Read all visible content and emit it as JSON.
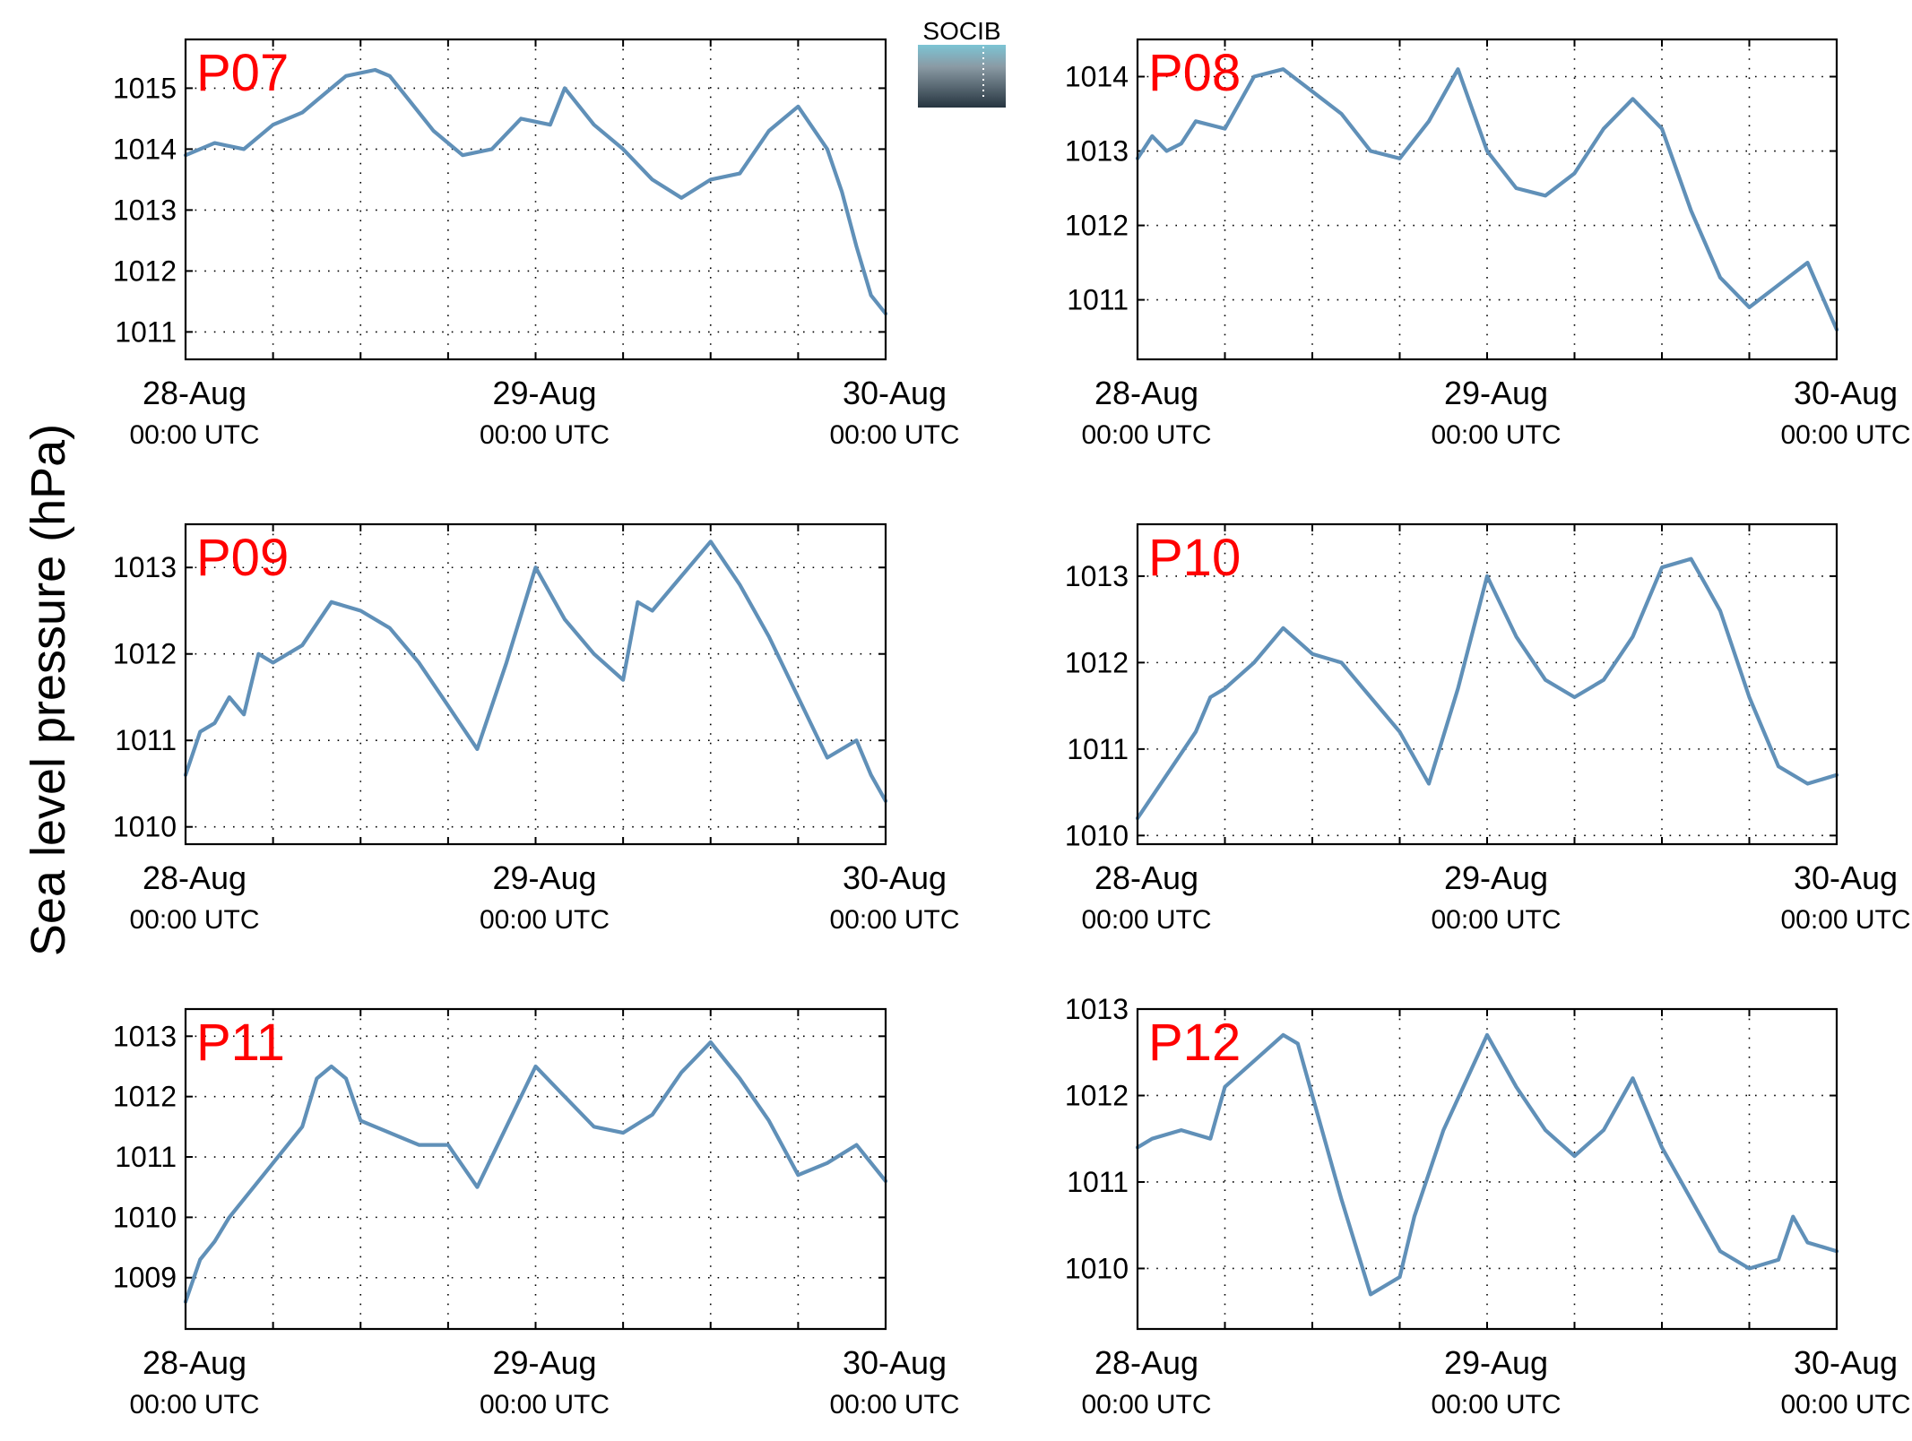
{
  "figure": {
    "ylabel": "Sea level pressure (hPa)",
    "logo_text": "SOCIB"
  },
  "colors": {
    "line": "#6090b8",
    "station_label": "#ff0000",
    "axes": "#000000",
    "grid": "#000000",
    "logo_text": "#5fb6cc",
    "logo_top": "#7cc4d4",
    "logo_bottom": "#263540"
  },
  "chart_data": [
    {
      "type": "line",
      "title": "P07",
      "x_tick_labels": [
        [
          "28-Aug",
          "00:00 UTC"
        ],
        [
          "29-Aug",
          "00:00 UTC"
        ],
        [
          "30-Aug",
          "00:00 UTC"
        ]
      ],
      "xlim": [
        "2024-08-28T00:00",
        "2024-08-30T00:00"
      ],
      "ylim": [
        1010.55,
        1015.8
      ],
      "yticks": [
        1011,
        1012,
        1013,
        1014,
        1015
      ],
      "grid": true,
      "series": [
        {
          "x": [
            "2024-08-28T00:00",
            "2024-08-28T02:00",
            "2024-08-28T04:00",
            "2024-08-28T06:00",
            "2024-08-28T08:00",
            "2024-08-28T09:00",
            "2024-08-28T11:00",
            "2024-08-28T13:00",
            "2024-08-28T14:00",
            "2024-08-28T15:00",
            "2024-08-28T17:00",
            "2024-08-28T19:00",
            "2024-08-28T21:00",
            "2024-08-28T23:00",
            "2024-08-29T01:00",
            "2024-08-29T02:00",
            "2024-08-29T04:00",
            "2024-08-29T06:00",
            "2024-08-29T08:00",
            "2024-08-29T10:00",
            "2024-08-29T12:00",
            "2024-08-29T14:00",
            "2024-08-29T16:00",
            "2024-08-29T18:00",
            "2024-08-29T20:00",
            "2024-08-29T21:00",
            "2024-08-29T22:00",
            "2024-08-29T23:00",
            "2024-08-30T00:00"
          ],
          "y": [
            1013.9,
            1014.1,
            1014.0,
            1014.4,
            1014.6,
            1014.8,
            1015.2,
            1015.3,
            1015.2,
            1014.9,
            1014.3,
            1013.9,
            1014.0,
            1014.5,
            1014.4,
            1015.0,
            1014.4,
            1014.0,
            1013.5,
            1013.2,
            1013.5,
            1013.6,
            1014.3,
            1014.7,
            1014.0,
            1013.3,
            1012.4,
            1011.6,
            1011.3
          ]
        }
      ]
    },
    {
      "type": "line",
      "title": "P08",
      "x_tick_labels": [
        [
          "28-Aug",
          "00:00 UTC"
        ],
        [
          "29-Aug",
          "00:00 UTC"
        ],
        [
          "30-Aug",
          "00:00 UTC"
        ]
      ],
      "xlim": [
        "2024-08-28T00:00",
        "2024-08-30T00:00"
      ],
      "ylim": [
        1010.2,
        1014.5
      ],
      "yticks": [
        1011,
        1012,
        1013,
        1014
      ],
      "grid": true,
      "series": [
        {
          "x": [
            "2024-08-28T00:00",
            "2024-08-28T01:00",
            "2024-08-28T02:00",
            "2024-08-28T03:00",
            "2024-08-28T04:00",
            "2024-08-28T06:00",
            "2024-08-28T08:00",
            "2024-08-28T10:00",
            "2024-08-28T12:00",
            "2024-08-28T14:00",
            "2024-08-28T16:00",
            "2024-08-28T18:00",
            "2024-08-28T20:00",
            "2024-08-28T22:00",
            "2024-08-29T00:00",
            "2024-08-29T02:00",
            "2024-08-29T04:00",
            "2024-08-29T06:00",
            "2024-08-29T08:00",
            "2024-08-29T10:00",
            "2024-08-29T12:00",
            "2024-08-29T14:00",
            "2024-08-29T16:00",
            "2024-08-29T18:00",
            "2024-08-29T20:00",
            "2024-08-29T22:00",
            "2024-08-30T00:00"
          ],
          "y": [
            1012.9,
            1013.2,
            1013.0,
            1013.1,
            1013.4,
            1013.3,
            1014.0,
            1014.1,
            1013.8,
            1013.5,
            1013.0,
            1012.9,
            1013.4,
            1014.1,
            1013.0,
            1012.5,
            1012.4,
            1012.7,
            1013.3,
            1013.7,
            1013.3,
            1012.2,
            1011.3,
            1010.9,
            1011.2,
            1011.5,
            1010.6
          ]
        }
      ]
    },
    {
      "type": "line",
      "title": "P09",
      "x_tick_labels": [
        [
          "28-Aug",
          "00:00 UTC"
        ],
        [
          "29-Aug",
          "00:00 UTC"
        ],
        [
          "30-Aug",
          "00:00 UTC"
        ]
      ],
      "xlim": [
        "2024-08-28T00:00",
        "2024-08-30T00:00"
      ],
      "ylim": [
        1009.8,
        1013.5
      ],
      "yticks": [
        1010,
        1011,
        1012,
        1013
      ],
      "grid": true,
      "series": [
        {
          "x": [
            "2024-08-28T00:00",
            "2024-08-28T01:00",
            "2024-08-28T02:00",
            "2024-08-28T03:00",
            "2024-08-28T04:00",
            "2024-08-28T05:00",
            "2024-08-28T06:00",
            "2024-08-28T08:00",
            "2024-08-28T10:00",
            "2024-08-28T12:00",
            "2024-08-28T14:00",
            "2024-08-28T16:00",
            "2024-08-28T18:00",
            "2024-08-28T20:00",
            "2024-08-28T22:00",
            "2024-08-29T00:00",
            "2024-08-29T02:00",
            "2024-08-29T04:00",
            "2024-08-29T06:00",
            "2024-08-29T07:00",
            "2024-08-29T08:00",
            "2024-08-29T10:00",
            "2024-08-29T12:00",
            "2024-08-29T14:00",
            "2024-08-29T16:00",
            "2024-08-29T18:00",
            "2024-08-29T20:00",
            "2024-08-29T22:00",
            "2024-08-29T23:00",
            "2024-08-30T00:00"
          ],
          "y": [
            1010.6,
            1011.1,
            1011.2,
            1011.5,
            1011.3,
            1012.0,
            1011.9,
            1012.1,
            1012.6,
            1012.5,
            1012.3,
            1011.9,
            1011.4,
            1010.9,
            1011.9,
            1013.0,
            1012.4,
            1012.0,
            1011.7,
            1012.6,
            1012.5,
            1012.9,
            1013.3,
            1012.8,
            1012.2,
            1011.5,
            1010.8,
            1011.0,
            1010.6,
            1010.3
          ]
        }
      ]
    },
    {
      "type": "line",
      "title": "P10",
      "x_tick_labels": [
        [
          "28-Aug",
          "00:00 UTC"
        ],
        [
          "29-Aug",
          "00:00 UTC"
        ],
        [
          "30-Aug",
          "00:00 UTC"
        ]
      ],
      "xlim": [
        "2024-08-28T00:00",
        "2024-08-30T00:00"
      ],
      "ylim": [
        1009.9,
        1013.6
      ],
      "yticks": [
        1010,
        1011,
        1012,
        1013
      ],
      "grid": true,
      "series": [
        {
          "x": [
            "2024-08-28T00:00",
            "2024-08-28T02:00",
            "2024-08-28T04:00",
            "2024-08-28T05:00",
            "2024-08-28T06:00",
            "2024-08-28T08:00",
            "2024-08-28T10:00",
            "2024-08-28T12:00",
            "2024-08-28T14:00",
            "2024-08-28T16:00",
            "2024-08-28T18:00",
            "2024-08-28T20:00",
            "2024-08-28T22:00",
            "2024-08-29T00:00",
            "2024-08-29T02:00",
            "2024-08-29T04:00",
            "2024-08-29T06:00",
            "2024-08-29T08:00",
            "2024-08-29T10:00",
            "2024-08-29T12:00",
            "2024-08-29T14:00",
            "2024-08-29T15:00",
            "2024-08-29T16:00",
            "2024-08-29T18:00",
            "2024-08-29T20:00",
            "2024-08-29T22:00",
            "2024-08-30T00:00"
          ],
          "y": [
            1010.2,
            1010.7,
            1011.2,
            1011.6,
            1011.7,
            1012.0,
            1012.4,
            1012.1,
            1012.0,
            1011.6,
            1011.2,
            1010.6,
            1011.7,
            1013.0,
            1012.3,
            1011.8,
            1011.6,
            1011.8,
            1012.3,
            1013.1,
            1013.2,
            1012.9,
            1012.6,
            1011.6,
            1010.8,
            1010.6,
            1010.7
          ]
        }
      ]
    },
    {
      "type": "line",
      "title": "P11",
      "x_tick_labels": [
        [
          "28-Aug",
          "00:00 UTC"
        ],
        [
          "29-Aug",
          "00:00 UTC"
        ],
        [
          "30-Aug",
          "00:00 UTC"
        ]
      ],
      "xlim": [
        "2024-08-28T00:00",
        "2024-08-30T00:00"
      ],
      "ylim": [
        1008.15,
        1013.45
      ],
      "yticks": [
        1009,
        1010,
        1011,
        1012,
        1013
      ],
      "grid": true,
      "series": [
        {
          "x": [
            "2024-08-28T00:00",
            "2024-08-28T01:00",
            "2024-08-28T02:00",
            "2024-08-28T03:00",
            "2024-08-28T04:00",
            "2024-08-28T06:00",
            "2024-08-28T08:00",
            "2024-08-28T09:00",
            "2024-08-28T10:00",
            "2024-08-28T11:00",
            "2024-08-28T12:00",
            "2024-08-28T14:00",
            "2024-08-28T16:00",
            "2024-08-28T18:00",
            "2024-08-28T20:00",
            "2024-08-29T00:00",
            "2024-08-29T02:00",
            "2024-08-29T04:00",
            "2024-08-29T06:00",
            "2024-08-29T08:00",
            "2024-08-29T10:00",
            "2024-08-29T12:00",
            "2024-08-29T14:00",
            "2024-08-29T16:00",
            "2024-08-29T18:00",
            "2024-08-29T20:00",
            "2024-08-29T22:00",
            "2024-08-30T00:00"
          ],
          "y": [
            1008.6,
            1009.3,
            1009.6,
            1010.0,
            1010.3,
            1010.9,
            1011.5,
            1012.3,
            1012.5,
            1012.3,
            1011.6,
            1011.4,
            1011.2,
            1011.2,
            1010.5,
            1012.5,
            1012.0,
            1011.5,
            1011.4,
            1011.7,
            1012.4,
            1012.9,
            1012.3,
            1011.6,
            1010.7,
            1010.9,
            1011.2,
            1010.6
          ]
        }
      ]
    },
    {
      "type": "line",
      "title": "P12",
      "x_tick_labels": [
        [
          "28-Aug",
          "00:00 UTC"
        ],
        [
          "29-Aug",
          "00:00 UTC"
        ],
        [
          "30-Aug",
          "00:00 UTC"
        ]
      ],
      "xlim": [
        "2024-08-28T00:00",
        "2024-08-30T00:00"
      ],
      "ylim": [
        1009.3,
        1013.0
      ],
      "yticks": [
        1010,
        1011,
        1012,
        1013
      ],
      "grid": true,
      "series": [
        {
          "x": [
            "2024-08-28T00:00",
            "2024-08-28T01:00",
            "2024-08-28T03:00",
            "2024-08-28T05:00",
            "2024-08-28T06:00",
            "2024-08-28T08:00",
            "2024-08-28T10:00",
            "2024-08-28T11:00",
            "2024-08-28T12:00",
            "2024-08-28T14:00",
            "2024-08-28T16:00",
            "2024-08-28T18:00",
            "2024-08-28T19:00",
            "2024-08-28T21:00",
            "2024-08-29T00:00",
            "2024-08-29T02:00",
            "2024-08-29T04:00",
            "2024-08-29T06:00",
            "2024-08-29T08:00",
            "2024-08-29T10:00",
            "2024-08-29T12:00",
            "2024-08-29T14:00",
            "2024-08-29T16:00",
            "2024-08-29T18:00",
            "2024-08-29T20:00",
            "2024-08-29T21:00",
            "2024-08-29T22:00",
            "2024-08-30T00:00"
          ],
          "y": [
            1011.4,
            1011.5,
            1011.6,
            1011.5,
            1012.1,
            1012.4,
            1012.7,
            1012.6,
            1012.0,
            1010.8,
            1009.7,
            1009.9,
            1010.6,
            1011.6,
            1012.7,
            1012.1,
            1011.6,
            1011.3,
            1011.6,
            1012.2,
            1011.4,
            1010.8,
            1010.2,
            1010.0,
            1010.1,
            1010.6,
            1010.3,
            1010.2
          ]
        }
      ]
    }
  ]
}
